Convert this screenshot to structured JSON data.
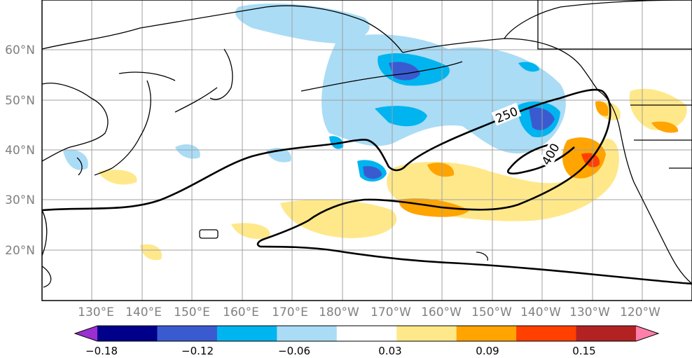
{
  "map": {
    "lat_ticks": [
      "60°N",
      "50°N",
      "40°N",
      "30°N",
      "20°N"
    ],
    "lon_ticks": [
      "130°E",
      "140°E",
      "150°E",
      "160°E",
      "170°E",
      "180°W",
      "170°W",
      "160°W",
      "150°W",
      "140°W",
      "130°W",
      "120°W"
    ],
    "contour_labels": [
      "250",
      "400"
    ],
    "lat_range": [
      10,
      70
    ],
    "lon_range_east": [
      120,
      250
    ],
    "label_color": "#808080"
  },
  "colorbar": {
    "tick_labels": [
      "−0.18",
      "−0.12",
      "−0.06",
      "0.03",
      "0.09",
      "0.15"
    ],
    "colors": [
      "#9b2fd0",
      "#00008b",
      "#3a5bd0",
      "#00b4f0",
      "#aadcf5",
      "#ffffff",
      "#ffe88a",
      "#ffa400",
      "#ff4000",
      "#b22222",
      "#ff7faa"
    ],
    "extend": "both"
  }
}
